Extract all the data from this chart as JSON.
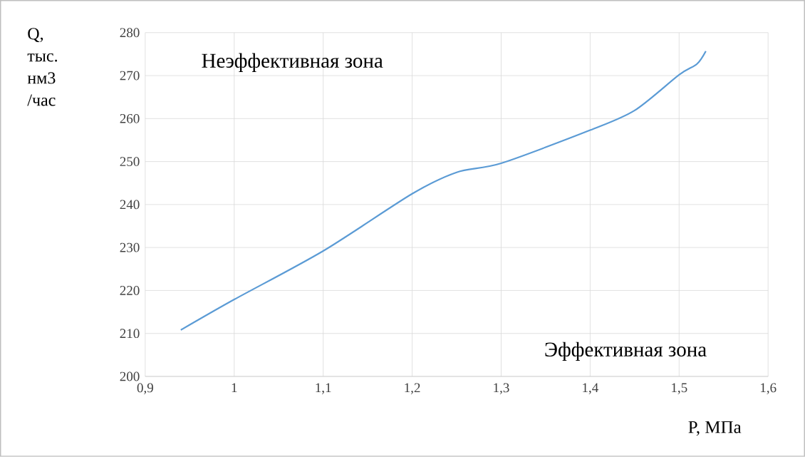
{
  "chart_data": {
    "type": "line",
    "ylabel": "Q, тыс. нм3 /час",
    "xlabel": "P, МПа",
    "annotations": [
      "Неэффективная зона",
      "Эффективная зона"
    ],
    "x": [
      0.94,
      1.0,
      1.1,
      1.2,
      1.25,
      1.3,
      1.4,
      1.45,
      1.5,
      1.52,
      1.53
    ],
    "series": [
      {
        "color": "#5b9bd5",
        "values": [
          210.8,
          217.9,
          229.2,
          242.5,
          247.5,
          249.6,
          257.3,
          261.9,
          270.2,
          272.7,
          275.7
        ]
      }
    ],
    "xlim": [
      0.9,
      1.6
    ],
    "ylim": [
      200,
      280
    ],
    "xticks": [
      {
        "value": 0.9,
        "label": "0,9"
      },
      1,
      {
        "value": 1.1,
        "label": "1,1"
      },
      {
        "value": 1.2,
        "label": "1,2"
      },
      {
        "value": 1.3,
        "label": "1,3"
      },
      {
        "value": 1.4,
        "label": "1,4"
      },
      {
        "value": 1.5,
        "label": "1,5"
      },
      {
        "value": 1.6,
        "label": "1,6"
      }
    ],
    "yticks": [
      200,
      210,
      220,
      230,
      240,
      250,
      260,
      270,
      280
    ],
    "grid": true,
    "marker": "none",
    "line_style": "solid"
  }
}
